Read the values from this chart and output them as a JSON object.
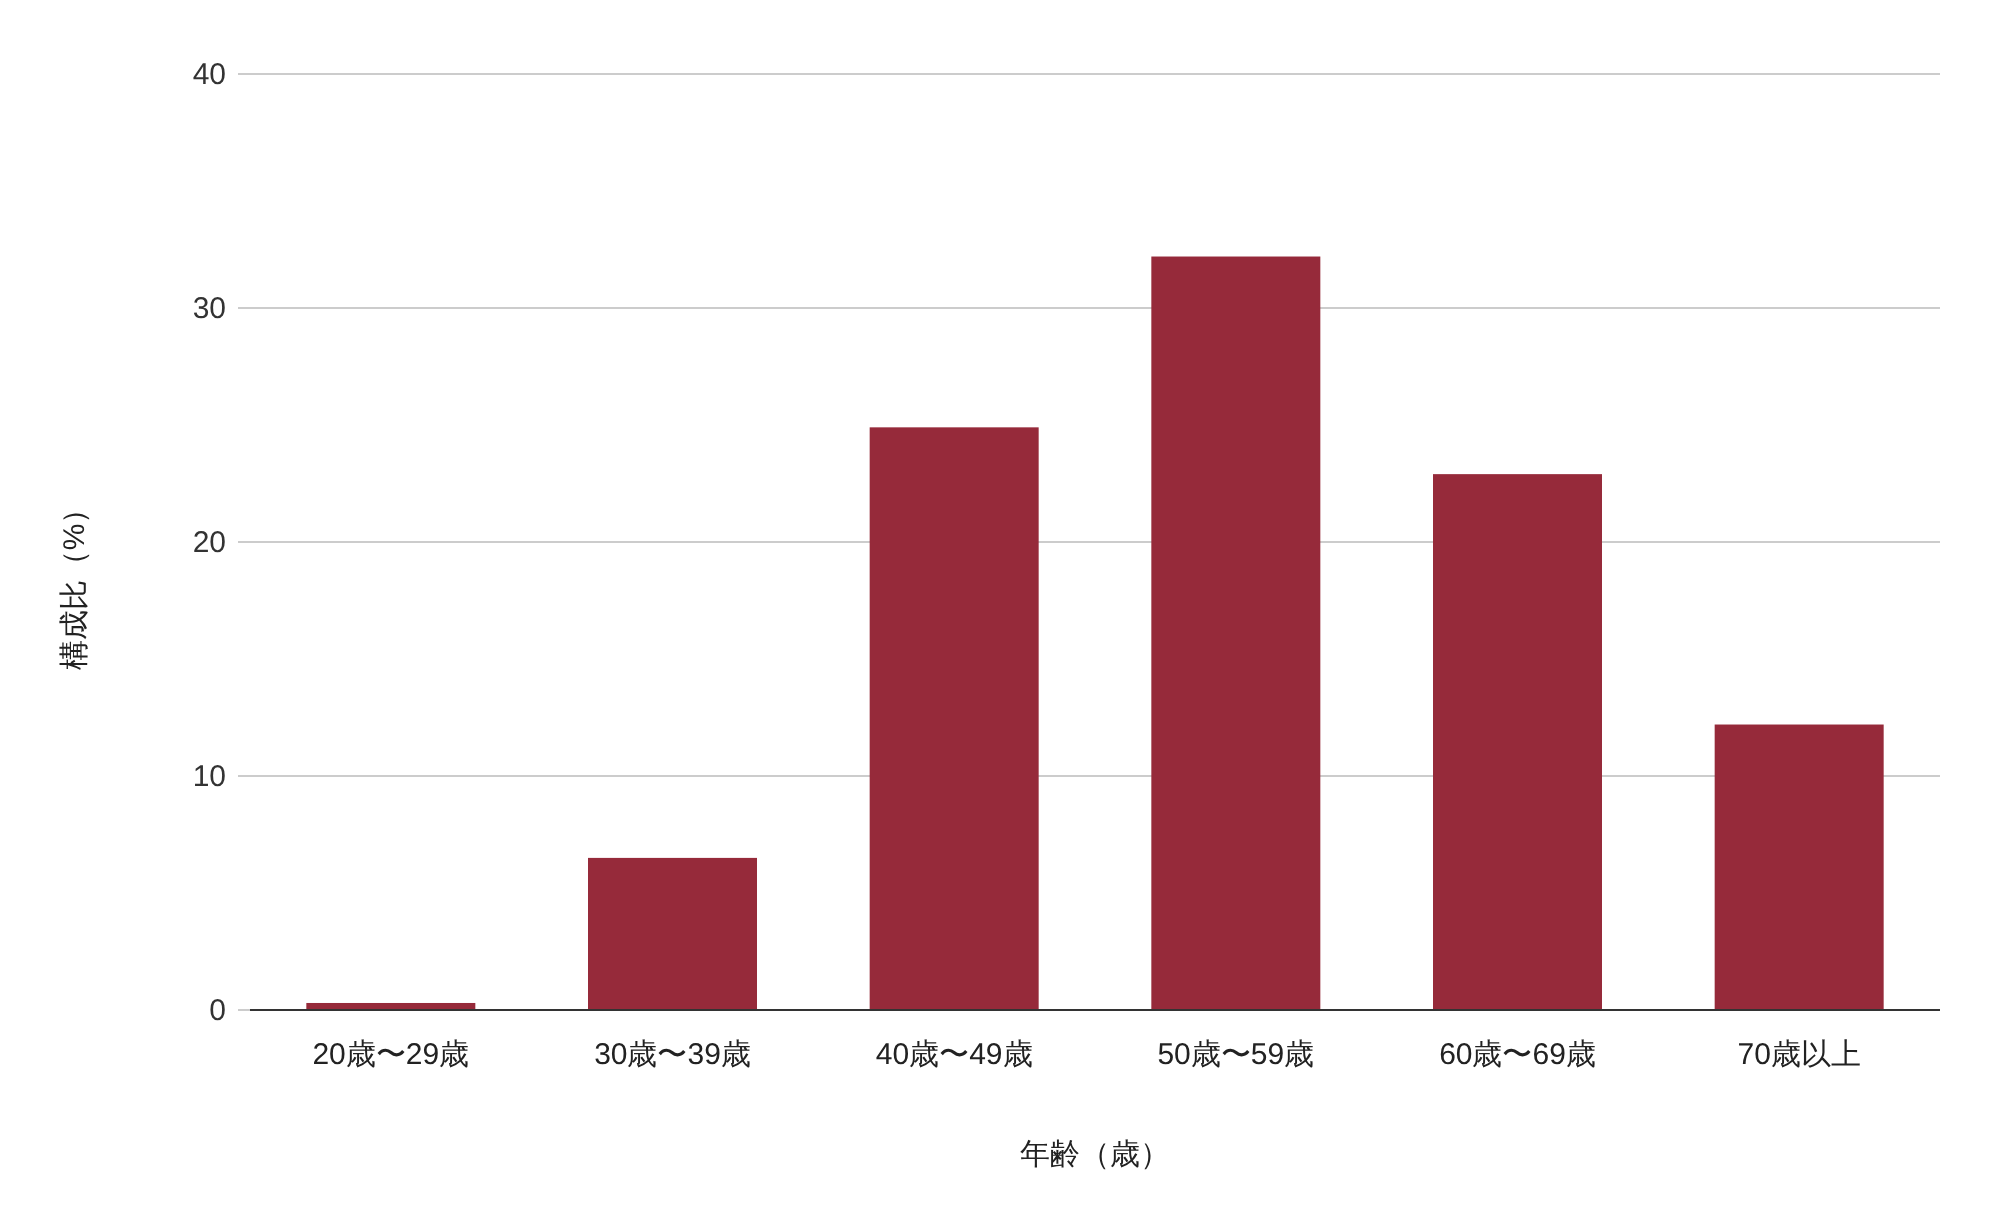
{
  "chart_data": {
    "type": "bar",
    "xlabel": "年齢（歳）",
    "ylabel": "構成比（%）",
    "categories": [
      "20歳〜29歳",
      "30歳〜39歳",
      "40歳〜49歳",
      "50歳〜59歳",
      "60歳〜69歳",
      "70歳以上"
    ],
    "values": [
      0.3,
      6.5,
      24.9,
      32.2,
      22.9,
      12.2
    ],
    "color": "#962a3a",
    "ylim": [
      0,
      40
    ],
    "yticks": [
      0,
      10,
      20,
      30,
      40
    ],
    "grid": "y"
  }
}
